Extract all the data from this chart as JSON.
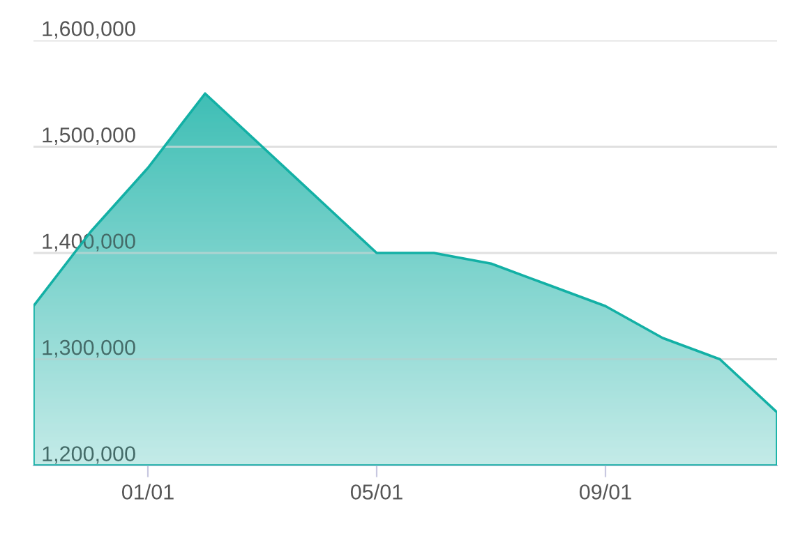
{
  "chart_data": {
    "type": "area",
    "categories": [
      null,
      null,
      "01/01",
      null,
      null,
      null,
      "05/01",
      null,
      null,
      null,
      "09/01",
      null,
      null,
      null
    ],
    "series": [
      {
        "color": "#13b0a5",
        "values": [
          1350000,
          1420000,
          1480000,
          1550000,
          1500000,
          1450000,
          1400000,
          1400000,
          1390000,
          1370000,
          1350000,
          1320000,
          1300000,
          1250000
        ]
      }
    ],
    "ylim": [
      1200000,
      1600000
    ],
    "yticks": [
      {
        "value": 1200000,
        "label": "1,200,000"
      },
      {
        "value": 1300000,
        "label": "1,300,000"
      },
      {
        "value": 1400000,
        "label": "1,400,000"
      },
      {
        "value": 1500000,
        "label": "1,500,000"
      },
      {
        "value": 1600000,
        "label": "1,600,000"
      }
    ],
    "grid": "y",
    "legend": false
  }
}
